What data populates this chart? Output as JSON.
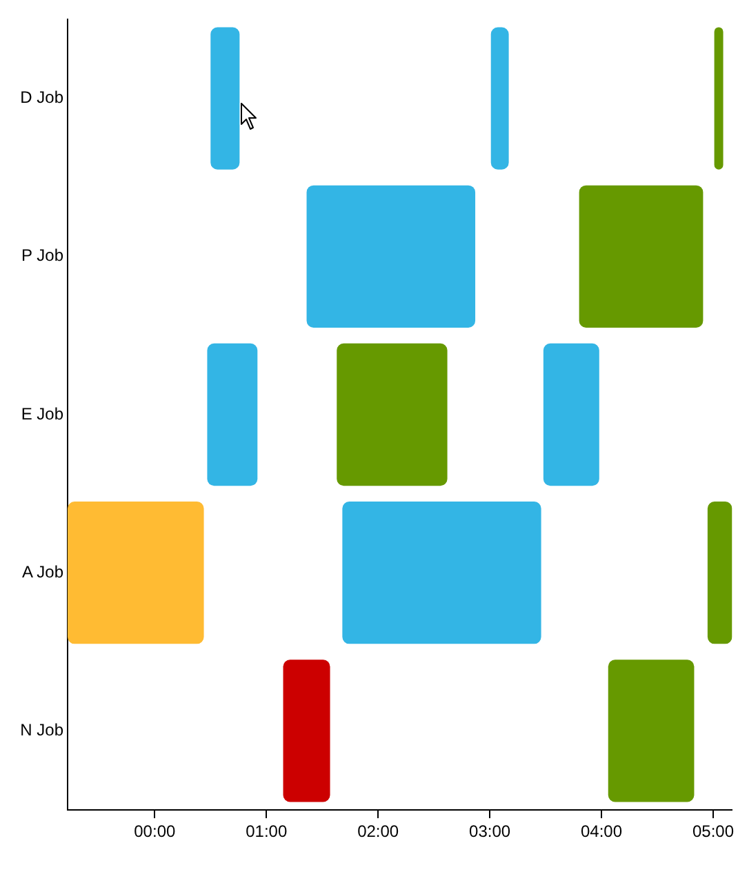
{
  "chart_data": {
    "type": "bar",
    "orientation": "horizontal",
    "categories": [
      "D Job",
      "P Job",
      "E Job",
      "A Job",
      "N Job"
    ],
    "series": [
      {
        "base": [
          0.5,
          1.36,
          0.47,
          -0.78,
          1.15
        ],
        "values": [
          0.26,
          1.51,
          0.45,
          1.22,
          0.42
        ],
        "colors": [
          "#33b5e5",
          "#33b5e5",
          "#33b5e5",
          "#ffbb33",
          "#cc0000"
        ]
      },
      {
        "base": [
          3.01,
          3.8,
          1.63,
          1.68,
          4.06
        ],
        "values": [
          0.16,
          1.11,
          0.99,
          1.78,
          0.77
        ],
        "colors": [
          "#33b5e5",
          "#669900",
          "#669900",
          "#33b5e5",
          "#669900"
        ]
      },
      {
        "base": [
          5.01,
          null,
          3.48,
          4.95,
          null
        ],
        "values": [
          0.08,
          null,
          0.5,
          0.22,
          null
        ],
        "colors": [
          "#669900",
          null,
          "#33b5e5",
          "#669900",
          null
        ]
      }
    ],
    "xlim": [
      -0.78,
      5.17
    ],
    "xticks": [
      {
        "value": 0,
        "label": "00:00"
      },
      {
        "value": 1,
        "label": "01:00"
      },
      {
        "value": 2,
        "label": "02:00"
      },
      {
        "value": 3,
        "label": "03:00"
      },
      {
        "value": 4,
        "label": "04:00"
      },
      {
        "value": 5,
        "label": "05:00"
      }
    ],
    "grid": false,
    "legend": false
  }
}
